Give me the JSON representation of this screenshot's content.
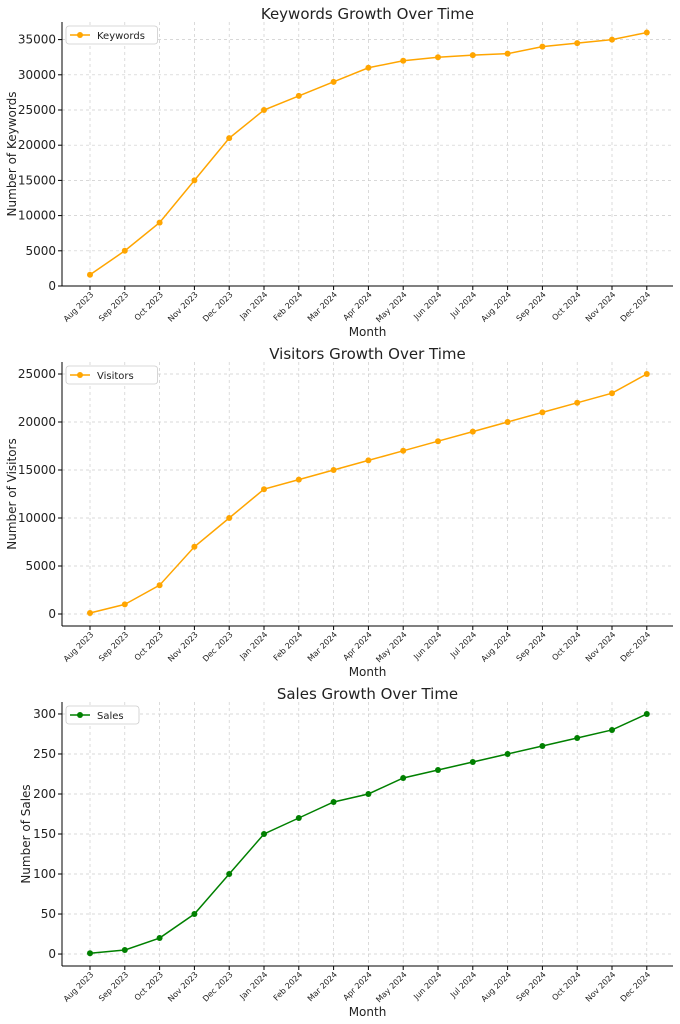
{
  "chart_data": [
    {
      "type": "line",
      "title": "Keywords Growth Over Time",
      "xlabel": "Month",
      "ylabel": "Number of Keywords",
      "categories": [
        "Aug 2023",
        "Sep 2023",
        "Oct 2023",
        "Nov 2023",
        "Dec 2023",
        "Jan 2024",
        "Feb 2024",
        "Mar 2024",
        "Apr 2024",
        "May 2024",
        "Jun 2024",
        "Jul 2024",
        "Aug 2024",
        "Sep 2024",
        "Oct 2024",
        "Nov 2024",
        "Dec 2024"
      ],
      "series": [
        {
          "name": "Keywords",
          "color": "#FFA500",
          "values": [
            1600,
            5000,
            9000,
            15000,
            21000,
            25000,
            27000,
            29000,
            31000,
            32000,
            32500,
            32800,
            33000,
            34000,
            34500,
            35000,
            36000
          ]
        }
      ],
      "ylim": [
        0,
        37500
      ],
      "yticks": [
        0,
        5000,
        10000,
        15000,
        20000,
        25000,
        30000,
        35000
      ],
      "grid": true,
      "legend_position": "top-left"
    },
    {
      "type": "line",
      "title": "Visitors Growth Over Time",
      "xlabel": "Month",
      "ylabel": "Number of Visitors",
      "categories": [
        "Aug 2023",
        "Sep 2023",
        "Oct 2023",
        "Nov 2023",
        "Dec 2023",
        "Jan 2024",
        "Feb 2024",
        "Mar 2024",
        "Apr 2024",
        "May 2024",
        "Jun 2024",
        "Jul 2024",
        "Aug 2024",
        "Sep 2024",
        "Oct 2024",
        "Nov 2024",
        "Dec 2024"
      ],
      "series": [
        {
          "name": "Visitors",
          "color": "#FFA500",
          "values": [
            100,
            1000,
            3000,
            7000,
            10000,
            13000,
            14000,
            15000,
            16000,
            17000,
            18000,
            19000,
            20000,
            21000,
            22000,
            23000,
            25000
          ]
        }
      ],
      "ylim": [
        -1250,
        26250
      ],
      "yticks": [
        0,
        5000,
        10000,
        15000,
        20000,
        25000
      ],
      "grid": true,
      "legend_position": "top-left"
    },
    {
      "type": "line",
      "title": "Sales Growth Over Time",
      "xlabel": "Month",
      "ylabel": "Number of Sales",
      "categories": [
        "Aug 2023",
        "Sep 2023",
        "Oct 2023",
        "Nov 2023",
        "Dec 2023",
        "Jan 2024",
        "Feb 2024",
        "Mar 2024",
        "Apr 2024",
        "May 2024",
        "Jun 2024",
        "Jul 2024",
        "Aug 2024",
        "Sep 2024",
        "Oct 2024",
        "Nov 2024",
        "Dec 2024"
      ],
      "series": [
        {
          "name": "Sales",
          "color": "#008000",
          "values": [
            1,
            5,
            20,
            50,
            100,
            150,
            170,
            190,
            200,
            220,
            230,
            240,
            250,
            260,
            270,
            280,
            300
          ]
        }
      ],
      "ylim": [
        -14.95,
        314.95
      ],
      "yticks": [
        0,
        50,
        100,
        150,
        200,
        250,
        300
      ],
      "grid": true,
      "legend_position": "top-left"
    }
  ]
}
